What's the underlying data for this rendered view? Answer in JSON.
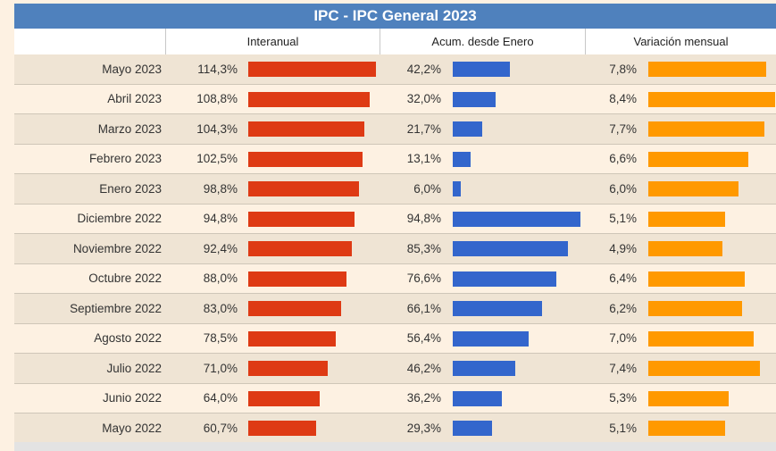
{
  "colors": {
    "title_bg": "#4f81bd",
    "interanual": "#de3a14",
    "acumulado": "#3366cc",
    "mensual": "#ff9900"
  },
  "chart_data": {
    "type": "bar",
    "title": "IPC - IPC General 2023",
    "categories": [
      "Mayo 2023",
      "Abril 2023",
      "Marzo 2023",
      "Febrero 2023",
      "Enero 2023",
      "Diciembre 2022",
      "Noviembre 2022",
      "Octubre 2022",
      "Septiembre 2022",
      "Agosto 2022",
      "Julio 2022",
      "Junio 2022",
      "Mayo 2022"
    ],
    "series": [
      {
        "name": "Interanual",
        "values": [
          114.3,
          108.8,
          104.3,
          102.5,
          98.8,
          94.8,
          92.4,
          88.0,
          83.0,
          78.5,
          71.0,
          64.0,
          60.7
        ],
        "labels": [
          "114,3%",
          "108,8%",
          "104,3%",
          "102,5%",
          "98,8%",
          "94,8%",
          "92,4%",
          "88,0%",
          "83,0%",
          "78,5%",
          "71,0%",
          "64,0%",
          "60,7%"
        ]
      },
      {
        "name": "Acum. desde Enero",
        "values": [
          42.2,
          32.0,
          21.7,
          13.1,
          6.0,
          94.8,
          85.3,
          76.6,
          66.1,
          56.4,
          46.2,
          36.2,
          29.3
        ],
        "labels": [
          "42,2%",
          "32,0%",
          "21,7%",
          "13,1%",
          "6,0%",
          "94,8%",
          "85,3%",
          "76,6%",
          "66,1%",
          "56,4%",
          "46,2%",
          "36,2%",
          "29,3%"
        ]
      },
      {
        "name": "Variación mensual",
        "values": [
          7.8,
          8.4,
          7.7,
          6.6,
          6.0,
          5.1,
          4.9,
          6.4,
          6.2,
          7.0,
          7.4,
          5.3,
          5.1
        ],
        "labels": [
          "7,8%",
          "8,4%",
          "7,7%",
          "6,6%",
          "6,0%",
          "5,1%",
          "4,9%",
          "6,4%",
          "6,2%",
          "7,0%",
          "7,4%",
          "5,3%",
          "5,1%"
        ]
      }
    ]
  }
}
